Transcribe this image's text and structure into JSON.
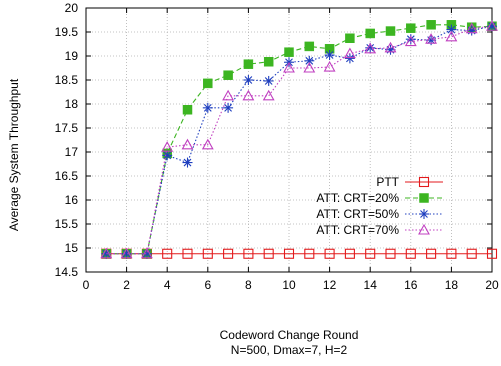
{
  "chart_data": {
    "type": "line",
    "title": "",
    "xlabel": "Codeword Change Round",
    "xlabel_sub": "N=500, Dmax=7, H=2",
    "ylabel": "Average System Throughput",
    "xlim": [
      0,
      20
    ],
    "ylim": [
      14.5,
      20
    ],
    "xticks": [
      0,
      2,
      4,
      6,
      8,
      10,
      12,
      14,
      16,
      18,
      20
    ],
    "yticks": [
      14.5,
      15,
      15.5,
      16,
      16.5,
      17,
      17.5,
      18,
      18.5,
      19,
      19.5,
      20
    ],
    "grid": true,
    "legend_position": "lower-right",
    "x": [
      1,
      2,
      3,
      4,
      5,
      6,
      7,
      8,
      9,
      10,
      11,
      12,
      13,
      14,
      15,
      16,
      17,
      18,
      19,
      20
    ],
    "series": [
      {
        "name": "PTT",
        "color": "#e31a1c",
        "marker": "square-open",
        "dash": "solid",
        "values": [
          14.88,
          14.88,
          14.88,
          14.88,
          14.88,
          14.88,
          14.88,
          14.88,
          14.88,
          14.88,
          14.88,
          14.88,
          14.88,
          14.88,
          14.88,
          14.88,
          14.88,
          14.88,
          14.88,
          14.88
        ]
      },
      {
        "name": "ATT: CRT=20%",
        "color": "#3cb521",
        "marker": "square-filled",
        "dash": "dashed",
        "values": [
          14.88,
          14.88,
          14.88,
          16.97,
          17.88,
          18.43,
          18.6,
          18.83,
          18.88,
          19.08,
          19.2,
          19.15,
          19.37,
          19.47,
          19.52,
          19.58,
          19.65,
          19.65,
          19.6,
          19.62
        ]
      },
      {
        "name": "ATT: CRT=50%",
        "color": "#1f3fbf",
        "marker": "asterisk",
        "dash": "dotted",
        "values": [
          14.88,
          14.88,
          14.88,
          16.93,
          16.78,
          17.92,
          17.92,
          18.5,
          18.48,
          18.87,
          18.9,
          19.02,
          18.95,
          19.17,
          19.13,
          19.35,
          19.33,
          19.55,
          19.53,
          19.62
        ]
      },
      {
        "name": "ATT: CRT=70%",
        "color": "#c040c0",
        "marker": "triangle-open",
        "dash": "dotted",
        "values": [
          14.88,
          14.88,
          14.88,
          17.1,
          17.15,
          17.15,
          18.17,
          18.17,
          18.17,
          18.75,
          18.75,
          18.77,
          19.05,
          19.15,
          19.17,
          19.3,
          19.35,
          19.4,
          19.57,
          19.62
        ]
      }
    ]
  }
}
